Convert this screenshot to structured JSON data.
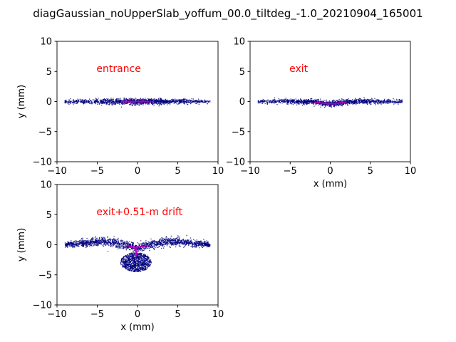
{
  "figure": {
    "suptitle": "diagGaussian_noUpperSlab_yoffum_00.0_tiltdeg_-1.0_20210904_165001"
  },
  "colors": {
    "annotation": "#ff0000",
    "particles": "#00007f",
    "core": "#b000b0",
    "axes": "#000000",
    "background": "#ffffff"
  },
  "chart_data": [
    {
      "type": "scatter",
      "panel": "entrance",
      "annotation": "entrance",
      "xlabel": "",
      "ylabel": "y (mm)",
      "xlim": [
        -10,
        10
      ],
      "ylim": [
        -10,
        10
      ],
      "xticks": [
        "−10",
        "−5",
        "0",
        "5",
        "10"
      ],
      "yticks": [
        "−10",
        "−5",
        "0",
        "5",
        "10"
      ],
      "grid": false,
      "distribution": {
        "x_range": [
          -9,
          9
        ],
        "y_center": 0.0,
        "y_half_thickness_center": 0.25,
        "y_half_thickness_edge": 0.15,
        "core_x_range": [
          -2,
          2
        ]
      }
    },
    {
      "type": "scatter",
      "panel": "exit",
      "annotation": "exit",
      "xlabel": "x (mm)",
      "ylabel": "",
      "xlim": [
        -10,
        10
      ],
      "ylim": [
        -10,
        10
      ],
      "xticks": [
        "−10",
        "−5",
        "0",
        "5",
        "10"
      ],
      "yticks": [
        "−10",
        "−5",
        "0",
        "5",
        "10"
      ],
      "grid": false,
      "distribution": {
        "x_range": [
          -9,
          9
        ],
        "y_center": 0.0,
        "y_half_thickness_center": 0.25,
        "y_half_thickness_edge": 0.15,
        "center_dip": -0.35,
        "core_x_range": [
          -2,
          2
        ]
      }
    },
    {
      "type": "scatter",
      "panel": "drift",
      "annotation": "exit+0.51-m drift",
      "xlabel": "x (mm)",
      "ylabel": "y (mm)",
      "xlim": [
        -10,
        10
      ],
      "ylim": [
        -10,
        10
      ],
      "xticks": [
        "−10",
        "−5",
        "0",
        "5",
        "10"
      ],
      "yticks": [
        "−10",
        "−5",
        "0",
        "5",
        "10"
      ],
      "grid": false,
      "distribution": {
        "wings_x_range": [
          -9,
          9
        ],
        "wing_peak_y": 0.6,
        "wing_peak_x": 4,
        "wing_center_y": -0.4,
        "wing_edge_y": 0.0,
        "blob_center": [
          -0.2,
          -2.9
        ],
        "blob_radius_x": 1.9,
        "blob_radius_y": 1.6
      }
    }
  ]
}
